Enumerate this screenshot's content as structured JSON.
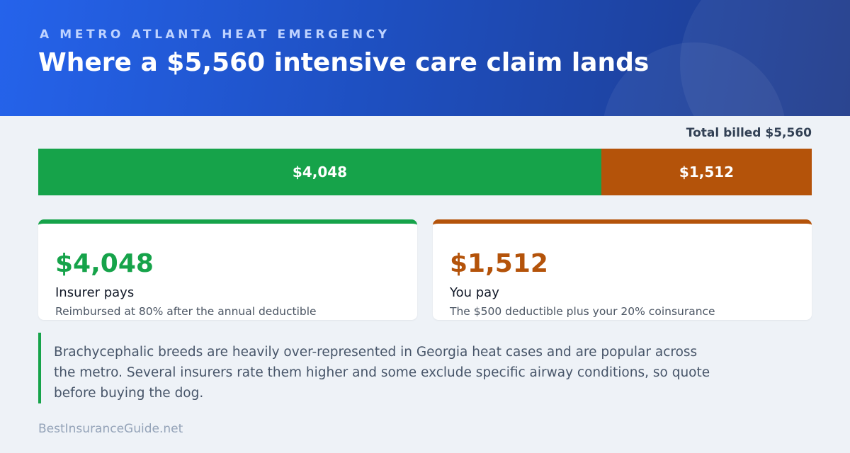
{
  "header": {
    "kicker": "A METRO ATLANTA HEAT EMERGENCY",
    "title": "Where a $5,560 intensive care claim lands"
  },
  "bar": {
    "total_label": "Total billed $5,560",
    "values": [
      4048,
      1512
    ],
    "value_labels": [
      "$4,048",
      "$1,512"
    ],
    "colors": [
      "#16a34a",
      "#b4530a"
    ]
  },
  "cards": [
    {
      "amount": "$4,048",
      "label": "Insurer pays",
      "note": "Reimbursed at 80% after the annual deductible"
    },
    {
      "amount": "$1,512",
      "label": "You pay",
      "note": "The $500 deductible plus your 20% coinsurance"
    }
  ],
  "note": "Brachycephalic breeds are heavily over-represented in Georgia heat cases and are popular across the metro. Several insurers rate them higher and some exclude specific airway conditions, so quote before buying the dog.",
  "footer": "BestInsuranceGuide.net"
}
